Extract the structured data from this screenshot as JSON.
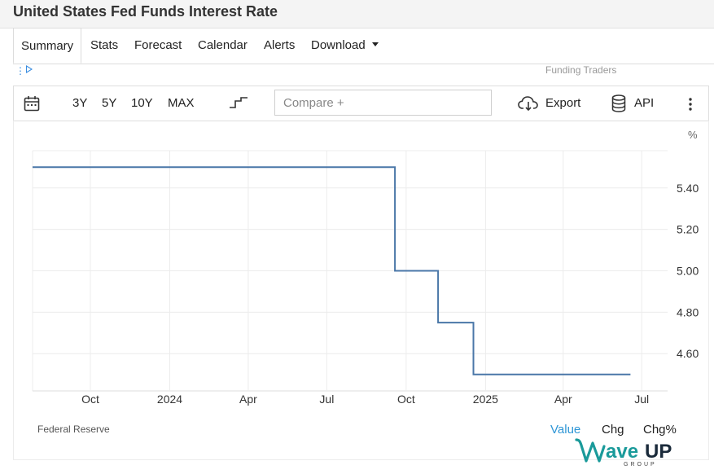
{
  "page": {
    "title": "United States Fed Funds Interest Rate"
  },
  "tabs": [
    {
      "label": "Summary",
      "active": true
    },
    {
      "label": "Stats"
    },
    {
      "label": "Forecast"
    },
    {
      "label": "Calendar"
    },
    {
      "label": "Alerts"
    },
    {
      "label": "Download"
    }
  ],
  "ad": {
    "text": "Funding Traders"
  },
  "toolbar": {
    "ranges": [
      "3Y",
      "5Y",
      "10Y",
      "MAX"
    ],
    "compare_placeholder": "Compare +",
    "export_label": "Export",
    "api_label": "API",
    "icons": [
      "calendar-icon",
      "step-chart-icon",
      "cloud-download-icon",
      "database-icon",
      "more-vertical-icon"
    ]
  },
  "footer": {
    "source": "Federal Reserve",
    "value_tab": "Value",
    "chg_tab": "Chg",
    "chgpct_tab": "Chg%"
  },
  "logo": {
    "text": "WaveUP",
    "subtext": "GROUP"
  },
  "colors": {
    "line": "#4a77a8",
    "active_tab": "#2e96d6",
    "logo_teal": "#1a9a9a"
  },
  "chart_data": {
    "type": "line",
    "unit_label": "%",
    "x_ticks": [
      "Oct",
      "2024",
      "Apr",
      "Jul",
      "Oct",
      "2025",
      "Apr",
      "Jul"
    ],
    "x_tick_dates": [
      "2023-10-01",
      "2024-01-01",
      "2024-04-01",
      "2024-07-01",
      "2024-10-01",
      "2025-01-01",
      "2025-04-01",
      "2025-07-01"
    ],
    "x_range": [
      "2023-07-26",
      "2025-07-31"
    ],
    "y_ticks": [
      5.4,
      5.2,
      5.0,
      4.8,
      4.6
    ],
    "y_tick_labels": [
      "5.40",
      "5.20",
      "5.00",
      "4.80",
      "4.60"
    ],
    "ylim": [
      4.42,
      5.58
    ],
    "grid": true,
    "series": [
      {
        "step": true,
        "points": [
          {
            "x": "2023-07-26",
            "y": 5.5
          },
          {
            "x": "2024-09-18",
            "y": 5.0
          },
          {
            "x": "2024-11-07",
            "y": 4.75
          },
          {
            "x": "2024-12-18",
            "y": 4.5
          },
          {
            "x": "2025-06-18",
            "y": 4.5
          }
        ]
      }
    ]
  }
}
